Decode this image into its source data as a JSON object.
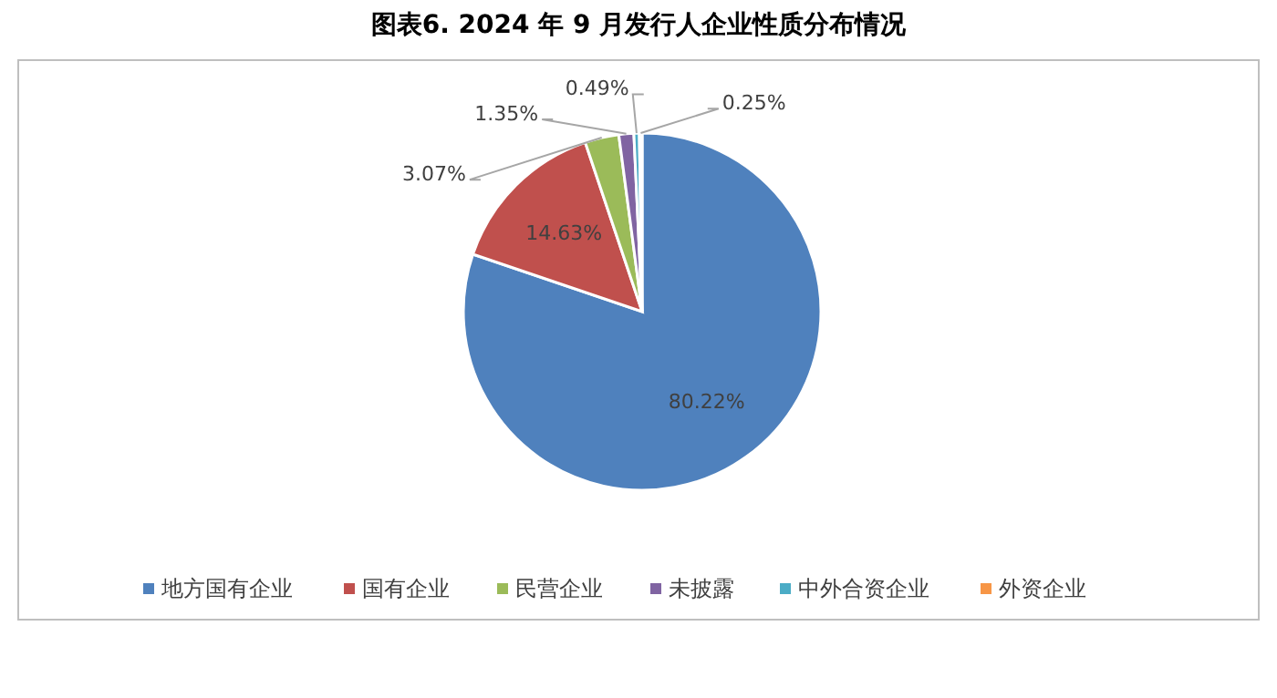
{
  "chart_data": {
    "type": "pie",
    "title": "图表6.    2024 年 9 月发行人企业性质分布情况",
    "categories": [
      "地方国有企业",
      "国有企业",
      "民营企业",
      "未披露",
      "中外合资企业",
      "外资企业"
    ],
    "values": [
      80.22,
      14.63,
      3.07,
      1.35,
      0.49,
      0.25
    ],
    "colors": [
      "#4f81bd",
      "#c0504d",
      "#9bbb59",
      "#8064a2",
      "#4bacc6",
      "#f79646"
    ],
    "value_labels": [
      "80.22%",
      "14.63%",
      "3.07%",
      "1.35%",
      "0.49%",
      "0.25%"
    ],
    "legend": "bottom"
  }
}
